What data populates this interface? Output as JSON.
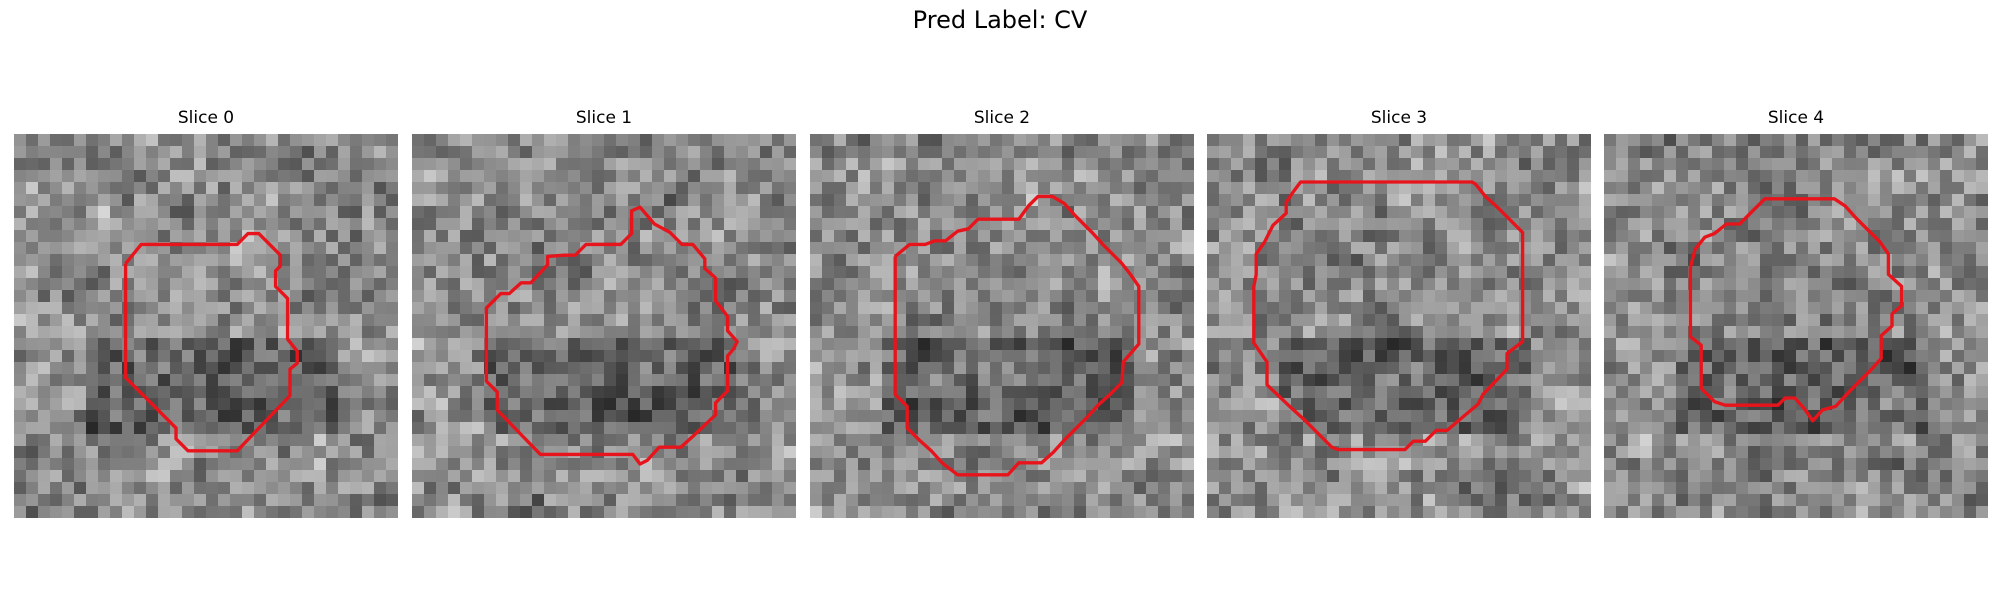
{
  "figure": {
    "suptitle": "Pred Label: CV"
  },
  "colors": {
    "contour": "#e8141c",
    "background": "#ffffff"
  },
  "slices": [
    {
      "title": "Slice 0",
      "seed": 11
    },
    {
      "title": "Slice 1",
      "seed": 23
    },
    {
      "title": "Slice 2",
      "seed": 37
    },
    {
      "title": "Slice 3",
      "seed": 51
    },
    {
      "title": "Slice 4",
      "seed": 67
    }
  ]
}
